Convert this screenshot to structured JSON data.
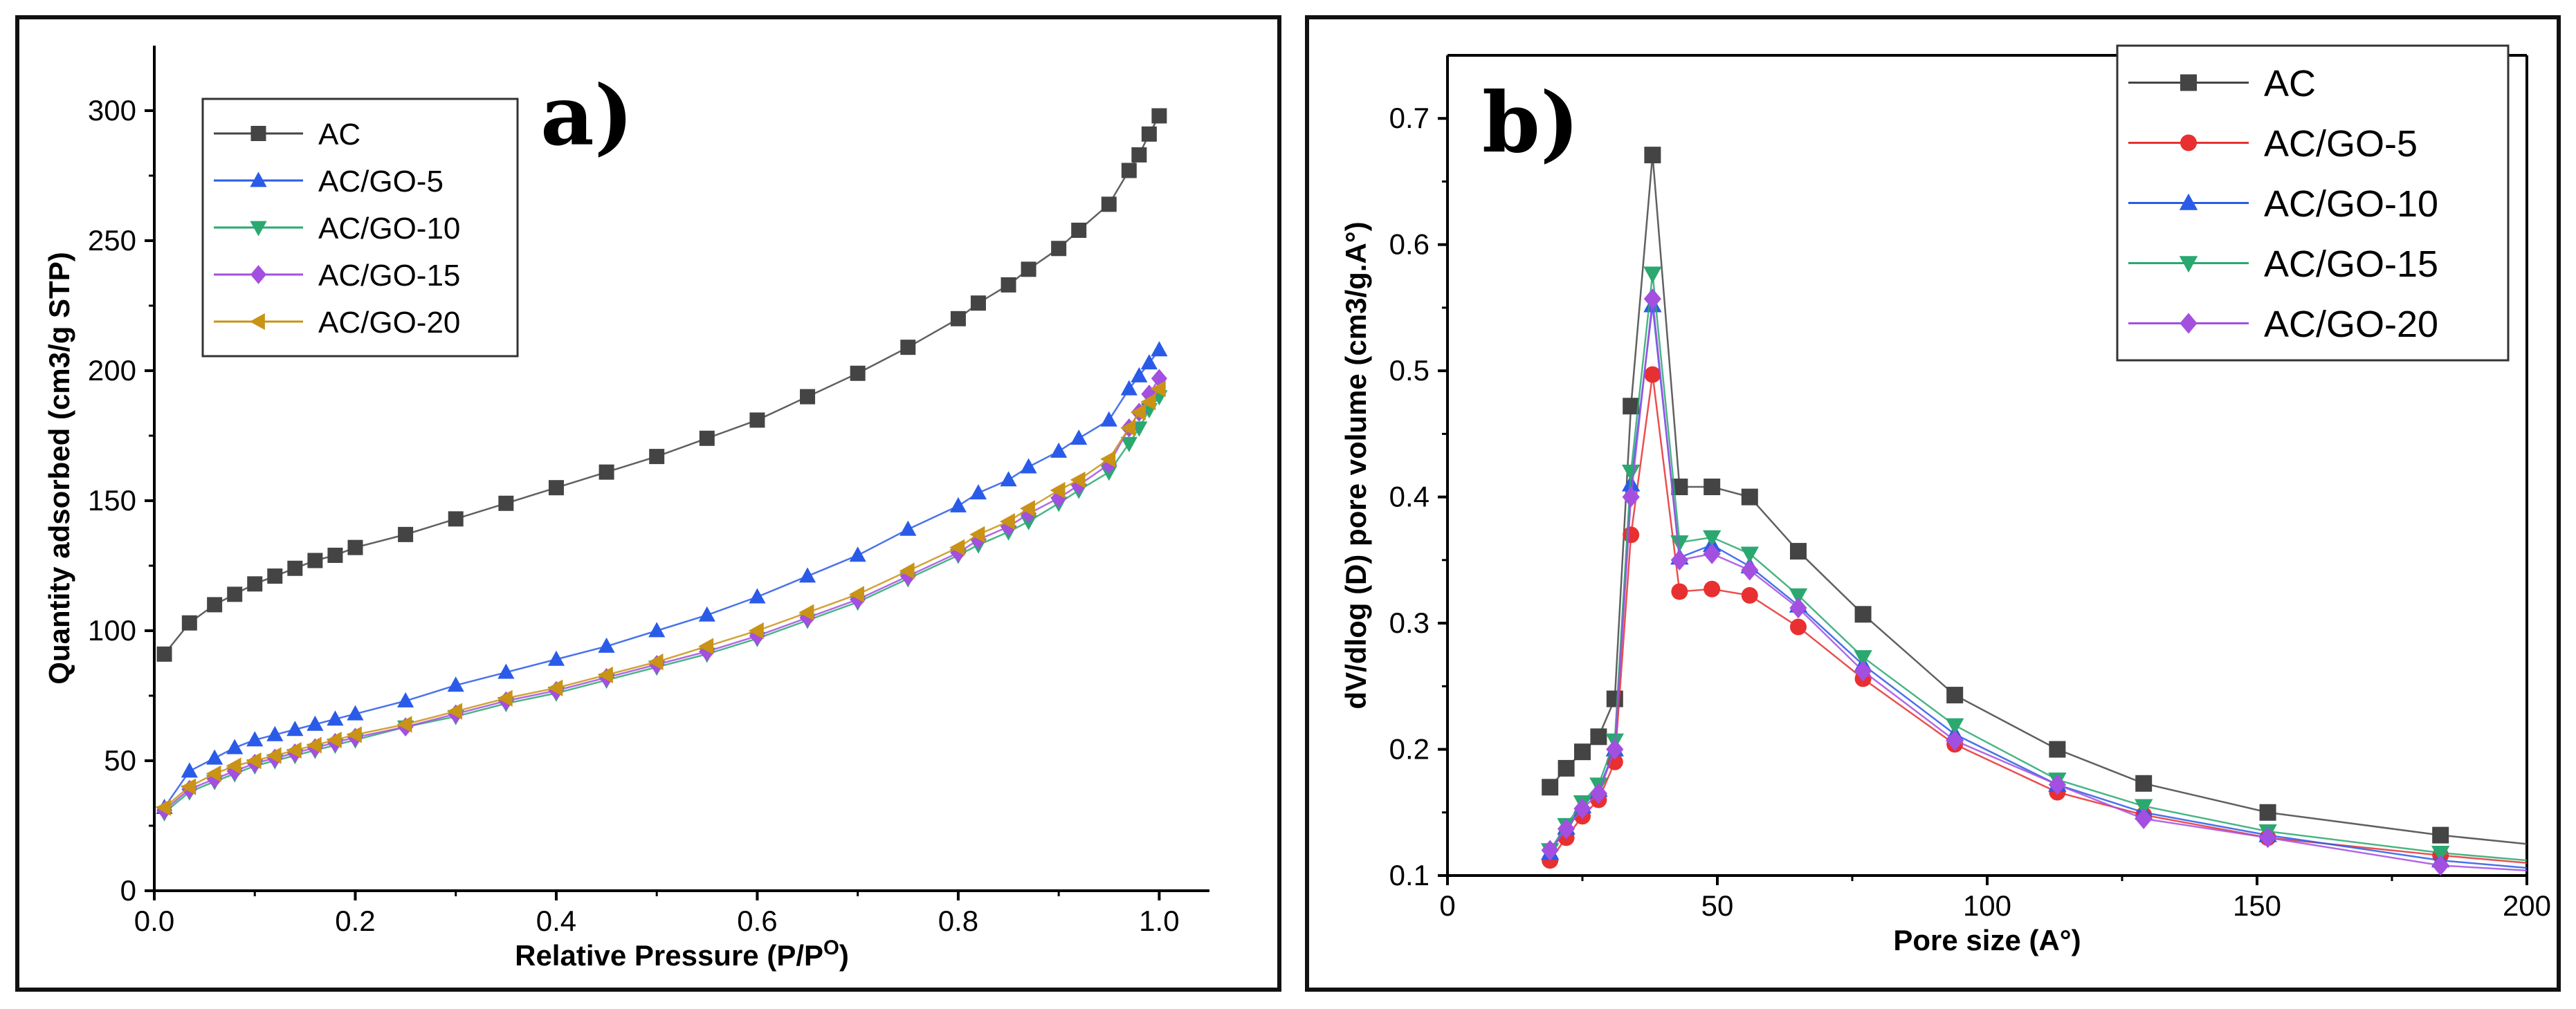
{
  "chart_data": [
    {
      "type": "line",
      "panel_label": "a)",
      "title": "",
      "xlabel": "Relative Pressure (P/P",
      "xlabel_sup": "O",
      "xlabel_end": ")",
      "ylabel": "Quantity adsorbed (cm3/g STP)",
      "xlim": [
        0,
        1.05
      ],
      "ylim": [
        0,
        325
      ],
      "xticks": [
        "0.0",
        "0.2",
        "0.4",
        "0.6",
        "0.8",
        "1.0"
      ],
      "yticks": [
        "0",
        "50",
        "100",
        "150",
        "200",
        "250",
        "300"
      ],
      "legend_position": "top-left",
      "series": [
        {
          "name": "AC",
          "color": "#444444",
          "marker": "square",
          "x": [
            0.01,
            0.035,
            0.06,
            0.08,
            0.1,
            0.12,
            0.14,
            0.16,
            0.18,
            0.2,
            0.25,
            0.3,
            0.35,
            0.4,
            0.45,
            0.5,
            0.55,
            0.6,
            0.65,
            0.7,
            0.75,
            0.8,
            0.82,
            0.85,
            0.87,
            0.9,
            0.92,
            0.95,
            0.97,
            0.98,
            0.99,
            1.0
          ],
          "y": [
            91,
            103,
            110,
            114,
            118,
            121,
            124,
            127,
            129,
            132,
            137,
            143,
            149,
            155,
            161,
            167,
            174,
            181,
            190,
            199,
            209,
            220,
            226,
            233,
            239,
            247,
            254,
            264,
            277,
            283,
            291,
            298
          ]
        },
        {
          "name": "AC/GO-5",
          "color": "#2a5be8",
          "marker": "triangle-up",
          "x": [
            0.01,
            0.035,
            0.06,
            0.08,
            0.1,
            0.12,
            0.14,
            0.16,
            0.18,
            0.2,
            0.25,
            0.3,
            0.35,
            0.4,
            0.45,
            0.5,
            0.55,
            0.6,
            0.65,
            0.7,
            0.75,
            0.8,
            0.82,
            0.85,
            0.87,
            0.9,
            0.92,
            0.95,
            0.97,
            0.98,
            0.99,
            1.0
          ],
          "y": [
            32,
            46,
            51,
            55,
            58,
            60,
            62,
            64,
            66,
            68,
            73,
            79,
            84,
            89,
            94,
            100,
            106,
            113,
            121,
            129,
            139,
            148,
            153,
            158,
            163,
            169,
            174,
            181,
            193,
            198,
            203,
            208
          ]
        },
        {
          "name": "AC/GO-10",
          "color": "#2aa870",
          "marker": "triangle-down",
          "x": [
            0.01,
            0.035,
            0.06,
            0.08,
            0.1,
            0.12,
            0.14,
            0.16,
            0.18,
            0.2,
            0.25,
            0.3,
            0.35,
            0.4,
            0.45,
            0.5,
            0.55,
            0.6,
            0.65,
            0.7,
            0.75,
            0.8,
            0.82,
            0.85,
            0.87,
            0.9,
            0.92,
            0.95,
            0.97,
            0.98,
            0.99,
            1.0
          ],
          "y": [
            30,
            38,
            42,
            45,
            48,
            50,
            52,
            54,
            56,
            58,
            63,
            67,
            72,
            76,
            81,
            86,
            91,
            97,
            104,
            111,
            120,
            129,
            133,
            138,
            142,
            149,
            154,
            161,
            172,
            178,
            185,
            190
          ]
        },
        {
          "name": "AC/GO-15",
          "color": "#a34fe0",
          "marker": "diamond",
          "x": [
            0.01,
            0.035,
            0.06,
            0.08,
            0.1,
            0.12,
            0.14,
            0.16,
            0.18,
            0.2,
            0.25,
            0.3,
            0.35,
            0.4,
            0.45,
            0.5,
            0.55,
            0.6,
            0.65,
            0.7,
            0.75,
            0.8,
            0.82,
            0.85,
            0.87,
            0.9,
            0.92,
            0.95,
            0.97,
            0.98,
            0.99,
            1.0
          ],
          "y": [
            31,
            39,
            43,
            46,
            49,
            51,
            53,
            55,
            57,
            59,
            63,
            68,
            73,
            77,
            82,
            87,
            92,
            98,
            105,
            112,
            121,
            130,
            135,
            140,
            145,
            151,
            156,
            164,
            178,
            184,
            191,
            197
          ]
        },
        {
          "name": "AC/GO-20",
          "color": "#c99316",
          "marker": "triangle-left",
          "x": [
            0.01,
            0.035,
            0.06,
            0.08,
            0.1,
            0.12,
            0.14,
            0.16,
            0.18,
            0.2,
            0.25,
            0.3,
            0.35,
            0.4,
            0.45,
            0.5,
            0.55,
            0.6,
            0.65,
            0.7,
            0.75,
            0.8,
            0.82,
            0.85,
            0.87,
            0.9,
            0.92,
            0.95,
            0.97,
            0.98,
            0.99,
            1.0
          ],
          "y": [
            32,
            40,
            45,
            48,
            50,
            52,
            54,
            56,
            58,
            60,
            64,
            69,
            74,
            78,
            83,
            88,
            94,
            100,
            107,
            114,
            123,
            132,
            137,
            142,
            147,
            154,
            158,
            166,
            178,
            184,
            188,
            193
          ]
        }
      ]
    },
    {
      "type": "line",
      "panel_label": "b)",
      "title": "",
      "xlabel": "Pore size (A°)",
      "ylabel": "dV/dlog (D) pore volume (cm3/g.A°)",
      "xlim": [
        0,
        200
      ],
      "ylim": [
        0.1,
        0.75
      ],
      "xticks": [
        "0",
        "50",
        "100",
        "150",
        "200"
      ],
      "yticks": [
        "0.1",
        "0.2",
        "0.3",
        "0.4",
        "0.5",
        "0.6",
        "0.7"
      ],
      "legend_position": "top-right",
      "series": [
        {
          "name": "AC",
          "color": "#444444",
          "marker": "square",
          "x": [
            19,
            22,
            25,
            28,
            31,
            34,
            38,
            43,
            49,
            56,
            65,
            77,
            94,
            113,
            129,
            152,
            184,
            200
          ],
          "y": [
            0.17,
            0.185,
            0.198,
            0.21,
            0.24,
            0.472,
            0.671,
            0.408,
            0.408,
            0.4,
            0.357,
            0.307,
            0.243,
            0.2,
            0.173,
            0.15,
            0.132,
            0.125
          ],
          "markers_count": 17
        },
        {
          "name": "AC/GO-5",
          "color": "#e83030",
          "marker": "circle",
          "x": [
            19,
            22,
            25,
            28,
            31,
            34,
            38,
            43,
            49,
            56,
            65,
            77,
            94,
            113,
            129,
            152,
            184,
            200
          ],
          "y": [
            0.112,
            0.13,
            0.147,
            0.16,
            0.19,
            0.37,
            0.497,
            0.325,
            0.327,
            0.322,
            0.297,
            0.256,
            0.204,
            0.166,
            0.148,
            0.13,
            0.116,
            0.11
          ],
          "markers_count": 17
        },
        {
          "name": "AC/GO-10",
          "color": "#2a5be8",
          "marker": "triangle-up",
          "x": [
            19,
            22,
            25,
            28,
            31,
            34,
            38,
            43,
            49,
            56,
            65,
            77,
            94,
            113,
            129,
            152,
            184,
            200
          ],
          "y": [
            0.118,
            0.138,
            0.155,
            0.168,
            0.2,
            0.41,
            0.552,
            0.352,
            0.362,
            0.345,
            0.314,
            0.267,
            0.212,
            0.172,
            0.15,
            0.132,
            0.112,
            0.106
          ],
          "markers_count": 17
        },
        {
          "name": "AC/GO-15",
          "color": "#2aa870",
          "marker": "triangle-down",
          "x": [
            19,
            22,
            25,
            28,
            31,
            34,
            38,
            43,
            49,
            56,
            65,
            77,
            94,
            113,
            129,
            152,
            184,
            200
          ],
          "y": [
            0.12,
            0.14,
            0.158,
            0.172,
            0.207,
            0.42,
            0.577,
            0.364,
            0.368,
            0.355,
            0.322,
            0.273,
            0.219,
            0.176,
            0.155,
            0.135,
            0.118,
            0.112
          ],
          "markers_count": 17
        },
        {
          "name": "AC/GO-20",
          "color": "#a34fe0",
          "marker": "diamond",
          "x": [
            19,
            22,
            25,
            28,
            31,
            34,
            38,
            43,
            49,
            56,
            65,
            77,
            94,
            113,
            129,
            152,
            184,
            200
          ],
          "y": [
            0.12,
            0.137,
            0.153,
            0.165,
            0.2,
            0.4,
            0.557,
            0.35,
            0.355,
            0.342,
            0.312,
            0.262,
            0.207,
            0.172,
            0.145,
            0.13,
            0.108,
            0.104
          ],
          "markers_count": 17
        }
      ]
    }
  ]
}
